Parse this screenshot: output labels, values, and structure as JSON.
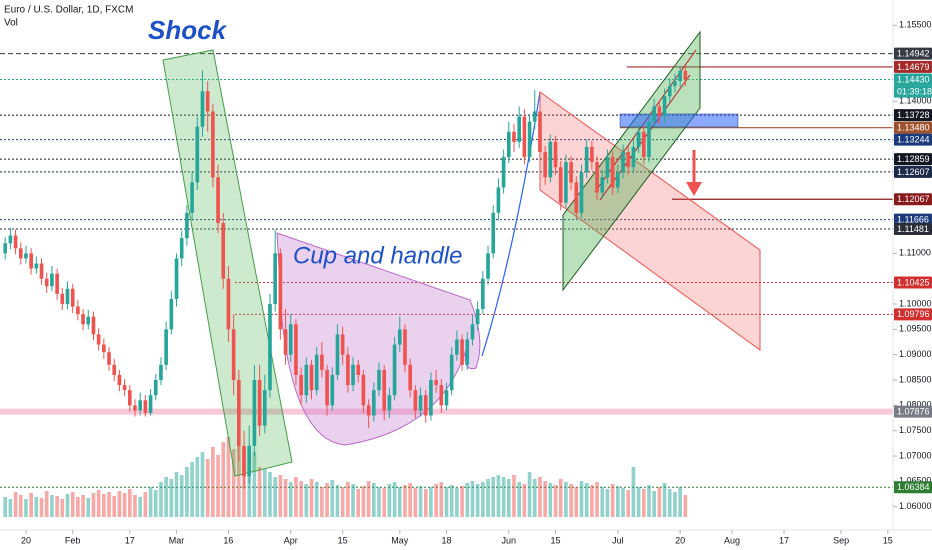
{
  "chart_data": {
    "type": "candlestick",
    "header": "Euro / U.S. Dollar, 1D, FXCM",
    "volume_title": "Vol",
    "annotations": [
      "Shock",
      "Cup and handle"
    ],
    "countdown": "01:39:18",
    "up_color": "#26a69a",
    "down_color": "#ef5350",
    "ylim": [
      1.0554,
      1.16
    ],
    "yticks": [
      {
        "value": 1.155,
        "label": "1.15500"
      },
      {
        "value": 1.14,
        "label": "1.14000"
      },
      {
        "value": 1.11,
        "label": "1.11000"
      },
      {
        "value": 1.1,
        "label": "1.10000"
      },
      {
        "value": 1.095,
        "label": "1.09500"
      },
      {
        "value": 1.09,
        "label": "1.09000"
      },
      {
        "value": 1.085,
        "label": "1.08500"
      },
      {
        "value": 1.08,
        "label": "1.08000"
      },
      {
        "value": 1.075,
        "label": "1.07500"
      },
      {
        "value": 1.07,
        "label": "1.07000"
      },
      {
        "value": 1.065,
        "label": "1.06500"
      },
      {
        "value": 1.06,
        "label": "1.06000"
      }
    ],
    "xlim": [
      -1,
      171
    ],
    "xticks": [
      {
        "value": 4,
        "label": "20"
      },
      {
        "value": 13,
        "label": "Feb"
      },
      {
        "value": 24,
        "label": "17"
      },
      {
        "value": 33,
        "label": "Mar"
      },
      {
        "value": 43,
        "label": "16"
      },
      {
        "value": 55,
        "label": "Apr"
      },
      {
        "value": 65,
        "label": "15"
      },
      {
        "value": 76,
        "label": "May"
      },
      {
        "value": 85,
        "label": "18"
      },
      {
        "value": 97,
        "label": "Jun"
      },
      {
        "value": 106,
        "label": "15"
      },
      {
        "value": 118,
        "label": "Jul"
      },
      {
        "value": 130,
        "label": "20"
      },
      {
        "value": 140,
        "label": "Aug"
      },
      {
        "value": 150,
        "label": "17"
      },
      {
        "value": 161,
        "label": "Sep"
      },
      {
        "value": 170,
        "label": "15"
      }
    ],
    "levels": [
      {
        "value": 1.14942,
        "color": "#363a45",
        "style": "dashed"
      },
      {
        "value": 1.14679,
        "color": "#a52a2a",
        "style": "solid"
      },
      {
        "value": 1.1443,
        "label": "1.14430",
        "color": "#26a69a",
        "style": "dotted"
      },
      {
        "value": 1.13728,
        "color": "#131722",
        "style": "dotted"
      },
      {
        "value": 1.1348,
        "label": "1.13480",
        "color": "#a0522d",
        "style": "solid"
      },
      {
        "value": 1.13244,
        "color": "#1a3a7a",
        "style": "dotted"
      },
      {
        "value": 1.12859,
        "color": "#131722",
        "style": "dotted"
      },
      {
        "value": 1.12607,
        "color": "#1c2a4a",
        "style": "dotted"
      },
      {
        "value": 1.12067,
        "color": "#8b1a1a",
        "style": "solid"
      },
      {
        "value": 1.11666,
        "color": "#1a3a7a",
        "style": "dotted"
      },
      {
        "value": 1.11481,
        "color": "#2a2e39",
        "style": "dotted"
      },
      {
        "value": 1.10425,
        "color": "#d32f2f",
        "style": "dotted"
      },
      {
        "value": 1.09796,
        "color": "#d32f2f",
        "style": "dotted"
      },
      {
        "value": 1.07876,
        "color": "#787b86",
        "style": "band"
      },
      {
        "value": 1.06384,
        "color": "#2e7d32",
        "style": "dotted"
      }
    ],
    "candles": [
      [
        1.11,
        1.1132,
        1.1088,
        1.112
      ],
      [
        1.112,
        1.115,
        1.1108,
        1.1135
      ],
      [
        1.1135,
        1.1147,
        1.1098,
        1.111
      ],
      [
        1.111,
        1.1122,
        1.1078,
        1.109
      ],
      [
        1.109,
        1.1115,
        1.108,
        1.11
      ],
      [
        1.11,
        1.111,
        1.1058,
        1.107
      ],
      [
        1.107,
        1.1094,
        1.106,
        1.108
      ],
      [
        1.108,
        1.109,
        1.1038,
        1.105
      ],
      [
        1.105,
        1.1062,
        1.1022,
        1.1035
      ],
      [
        1.1035,
        1.1075,
        1.1025,
        1.106
      ],
      [
        1.106,
        1.107,
        1.1008,
        1.102
      ],
      [
        1.102,
        1.1032,
        1.0988,
        1.1
      ],
      [
        1.1,
        1.1045,
        1.099,
        1.103
      ],
      [
        1.103,
        1.104,
        1.0982,
        1.0995
      ],
      [
        1.0995,
        1.1008,
        1.0968,
        1.098
      ],
      [
        1.098,
        1.099,
        1.0948,
        1.096
      ],
      [
        1.096,
        1.0988,
        1.095,
        1.0975
      ],
      [
        1.0975,
        1.0985,
        1.0928,
        1.094
      ],
      [
        1.094,
        1.0952,
        1.0908,
        1.092
      ],
      [
        1.092,
        1.0932,
        1.0892,
        1.0905
      ],
      [
        1.0905,
        1.0915,
        1.0868,
        1.088
      ],
      [
        1.088,
        1.0892,
        1.0848,
        1.086
      ],
      [
        1.086,
        1.087,
        1.0828,
        1.084
      ],
      [
        1.084,
        1.0852,
        1.0818,
        1.083
      ],
      [
        1.083,
        1.084,
        1.0788,
        1.08
      ],
      [
        1.08,
        1.0812,
        1.0778,
        1.079
      ],
      [
        1.079,
        1.0825,
        1.078,
        1.081
      ],
      [
        1.081,
        1.082,
        1.0778,
        1.0785
      ],
      [
        1.0785,
        1.0832,
        1.078,
        1.082
      ],
      [
        1.082,
        1.0862,
        1.081,
        1.085
      ],
      [
        1.085,
        1.0895,
        1.084,
        1.088
      ],
      [
        1.088,
        1.0965,
        1.087,
        1.095
      ],
      [
        1.095,
        1.1025,
        1.094,
        1.101
      ],
      [
        1.101,
        1.11,
        1.0995,
        1.109
      ],
      [
        1.109,
        1.1145,
        1.1075,
        1.113
      ],
      [
        1.113,
        1.1195,
        1.1115,
        1.118
      ],
      [
        1.118,
        1.126,
        1.1165,
        1.124
      ],
      [
        1.124,
        1.137,
        1.1225,
        1.135
      ],
      [
        1.135,
        1.1461,
        1.133,
        1.142
      ],
      [
        1.142,
        1.144,
        1.134,
        1.138
      ],
      [
        1.138,
        1.1395,
        1.123,
        1.125
      ],
      [
        1.125,
        1.1275,
        1.114,
        1.116
      ],
      [
        1.116,
        1.118,
        1.103,
        1.105
      ],
      [
        1.105,
        1.1075,
        1.0925,
        1.095
      ],
      [
        1.095,
        1.098,
        1.082,
        1.085
      ],
      [
        1.085,
        1.087,
        1.069,
        1.072
      ],
      [
        1.072,
        1.075,
        1.0636,
        1.066
      ],
      [
        1.066,
        1.076,
        1.0645,
        1.072
      ],
      [
        1.072,
        1.088,
        1.07,
        1.085
      ],
      [
        1.085,
        1.088,
        1.074,
        1.076
      ],
      [
        1.076,
        1.086,
        1.0745,
        1.083
      ],
      [
        1.083,
        1.102,
        1.0815,
        1.1
      ],
      [
        1.1,
        1.1147,
        1.0985,
        1.11
      ],
      [
        1.11,
        1.111,
        1.093,
        1.095
      ],
      [
        1.095,
        1.099,
        1.088,
        1.09
      ],
      [
        1.09,
        1.098,
        1.0885,
        1.096
      ],
      [
        1.096,
        1.097,
        1.084,
        1.086
      ],
      [
        1.086,
        1.0875,
        1.08,
        1.082
      ],
      [
        1.082,
        1.0895,
        1.0805,
        1.088
      ],
      [
        1.088,
        1.089,
        1.0812,
        1.083
      ],
      [
        1.083,
        1.0915,
        1.082,
        1.09
      ],
      [
        1.09,
        1.0925,
        1.0855,
        1.087
      ],
      [
        1.087,
        1.088,
        1.078,
        1.08
      ],
      [
        1.08,
        1.0875,
        1.079,
        1.086
      ],
      [
        1.086,
        1.096,
        1.085,
        1.094
      ],
      [
        1.094,
        1.0955,
        1.088,
        1.09
      ],
      [
        1.09,
        1.0915,
        1.0825,
        1.084
      ],
      [
        1.084,
        1.0895,
        1.0828,
        1.088
      ],
      [
        1.088,
        1.089,
        1.0845,
        1.086
      ],
      [
        1.086,
        1.087,
        1.0785,
        1.08
      ],
      [
        1.08,
        1.0812,
        1.0755,
        1.078
      ],
      [
        1.078,
        1.0845,
        1.0768,
        1.083
      ],
      [
        1.083,
        1.0885,
        1.0818,
        1.087
      ],
      [
        1.087,
        1.088,
        1.077,
        1.079
      ],
      [
        1.079,
        1.0835,
        1.0775,
        1.082
      ],
      [
        1.082,
        1.0935,
        1.081,
        1.092
      ],
      [
        1.092,
        1.0975,
        1.0905,
        1.095
      ],
      [
        1.095,
        1.096,
        1.0865,
        1.088
      ],
      [
        1.088,
        1.0892,
        1.0815,
        1.083
      ],
      [
        1.083,
        1.084,
        1.0775,
        1.079
      ],
      [
        1.079,
        1.0835,
        1.0778,
        1.082
      ],
      [
        1.082,
        1.083,
        1.0766,
        1.078
      ],
      [
        1.078,
        1.0865,
        1.077,
        1.085
      ],
      [
        1.085,
        1.087,
        1.0825,
        1.084
      ],
      [
        1.084,
        1.0852,
        1.0785,
        1.08
      ],
      [
        1.08,
        1.0845,
        1.079,
        1.083
      ],
      [
        1.083,
        1.0915,
        1.082,
        1.09
      ],
      [
        1.09,
        1.0948,
        1.0888,
        1.093
      ],
      [
        1.093,
        1.094,
        1.0868,
        1.088
      ],
      [
        1.088,
        1.0945,
        1.087,
        1.093
      ],
      [
        1.093,
        1.0978,
        1.0918,
        1.096
      ],
      [
        1.096,
        1.1005,
        1.0948,
        1.099
      ],
      [
        1.099,
        1.1065,
        1.098,
        1.105
      ],
      [
        1.105,
        1.1115,
        1.1038,
        1.11
      ],
      [
        1.11,
        1.1195,
        1.109,
        1.118
      ],
      [
        1.118,
        1.1248,
        1.1165,
        1.123
      ],
      [
        1.123,
        1.1305,
        1.1218,
        1.129
      ],
      [
        1.129,
        1.136,
        1.1278,
        1.134
      ],
      [
        1.134,
        1.1355,
        1.13,
        1.132
      ],
      [
        1.132,
        1.139,
        1.1308,
        1.137
      ],
      [
        1.137,
        1.1385,
        1.1275,
        1.129
      ],
      [
        1.129,
        1.1375,
        1.128,
        1.136
      ],
      [
        1.136,
        1.1422,
        1.1345,
        1.138
      ],
      [
        1.138,
        1.1392,
        1.1285,
        1.13
      ],
      [
        1.13,
        1.1312,
        1.1235,
        1.125
      ],
      [
        1.125,
        1.1335,
        1.124,
        1.132
      ],
      [
        1.132,
        1.1332,
        1.1255,
        1.127
      ],
      [
        1.127,
        1.1282,
        1.1185,
        1.12
      ],
      [
        1.12,
        1.1295,
        1.119,
        1.128
      ],
      [
        1.128,
        1.1292,
        1.1225,
        1.124
      ],
      [
        1.124,
        1.1252,
        1.1168,
        1.118
      ],
      [
        1.118,
        1.1275,
        1.117,
        1.126
      ],
      [
        1.126,
        1.1325,
        1.1248,
        1.131
      ],
      [
        1.131,
        1.1322,
        1.1265,
        1.128
      ],
      [
        1.128,
        1.1292,
        1.1205,
        1.122
      ],
      [
        1.122,
        1.1265,
        1.1208,
        1.125
      ],
      [
        1.125,
        1.1305,
        1.1238,
        1.129
      ],
      [
        1.129,
        1.1302,
        1.1215,
        1.123
      ],
      [
        1.123,
        1.1275,
        1.1218,
        1.126
      ],
      [
        1.126,
        1.1315,
        1.1248,
        1.13
      ],
      [
        1.13,
        1.1312,
        1.1255,
        1.127
      ],
      [
        1.127,
        1.1325,
        1.1258,
        1.131
      ],
      [
        1.131,
        1.1355,
        1.1298,
        1.134
      ],
      [
        1.134,
        1.1352,
        1.1275,
        1.129
      ],
      [
        1.129,
        1.1375,
        1.128,
        1.136
      ],
      [
        1.136,
        1.1405,
        1.1348,
        1.139
      ],
      [
        1.139,
        1.1402,
        1.1355,
        1.137
      ],
      [
        1.137,
        1.1425,
        1.1358,
        1.141
      ],
      [
        1.141,
        1.1445,
        1.1398,
        1.143
      ],
      [
        1.143,
        1.1455,
        1.1418,
        1.144
      ],
      [
        1.144,
        1.1468,
        1.1428,
        1.146
      ],
      [
        1.146,
        1.147,
        1.143,
        1.1443
      ]
    ],
    "volume_lim": [
      0,
      100
    ],
    "volume": [
      20,
      18,
      25,
      22,
      18,
      24,
      20,
      19,
      26,
      22,
      21,
      18,
      23,
      25,
      20,
      22,
      19,
      24,
      27,
      23,
      25,
      21,
      26,
      24,
      28,
      22,
      20,
      25,
      30,
      27,
      35,
      40,
      38,
      45,
      42,
      50,
      55,
      60,
      65,
      58,
      70,
      62,
      75,
      80,
      68,
      72,
      60,
      55,
      65,
      50,
      48,
      45,
      40,
      42,
      38,
      35,
      40,
      36,
      33,
      38,
      35,
      30,
      34,
      37,
      32,
      30,
      35,
      33,
      28,
      31,
      36,
      34,
      30,
      29,
      33,
      35,
      30,
      32,
      34,
      29,
      31,
      28,
      30,
      33,
      35,
      30,
      32,
      29,
      31,
      34,
      36,
      33,
      35,
      38,
      40,
      42,
      40,
      38,
      42,
      35,
      33,
      45,
      38,
      40,
      36,
      34,
      32,
      38,
      35,
      33,
      30,
      36,
      34,
      32,
      35,
      30,
      28,
      33,
      31,
      29,
      27,
      50,
      30,
      28,
      32,
      26,
      30,
      34,
      28,
      25,
      30,
      22
    ]
  }
}
